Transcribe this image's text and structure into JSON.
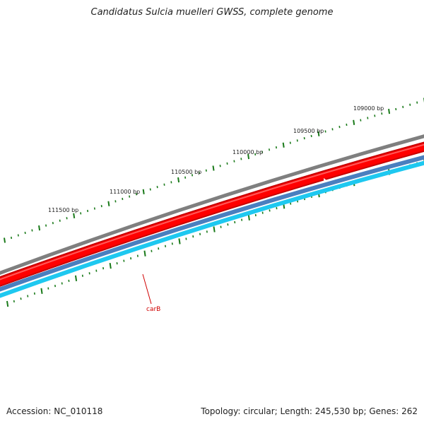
{
  "title": "Candidatus Sulcia muelleri GWSS, complete genome",
  "footer": {
    "accession": "Accession: NC_010118",
    "summary": "Topology: circular; Length: 245,530 bp; Genes: 262"
  },
  "ticks": [
    {
      "label": "109000 bp"
    },
    {
      "label": "109500 bp"
    },
    {
      "label": "110000 bp"
    },
    {
      "label": "110500 bp"
    },
    {
      "label": "111000 bp"
    },
    {
      "label": "111500 bp"
    }
  ],
  "gene": {
    "label": "carB"
  },
  "colors": {
    "backbone": "#7f7f7f",
    "gene_fill": "#ff0000",
    "gene_dark": "#c80000",
    "track_blue": "#4a7fbf",
    "track_cyan": "#1ec8f0",
    "tick_green": "#1a7a1a",
    "label_red": "#d00000"
  }
}
